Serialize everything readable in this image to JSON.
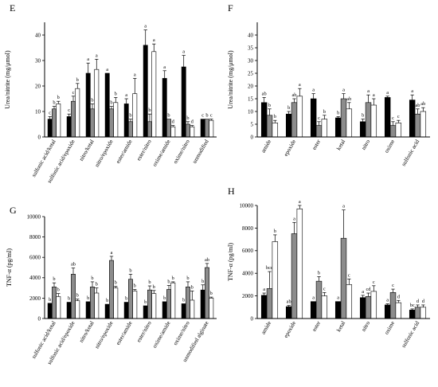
{
  "colors": {
    "series1": "#000000",
    "series2": "#8c8c8c",
    "series3": "#ffffff"
  },
  "chart_data": [
    {
      "panel": "E",
      "type": "bar",
      "ylabel": "Urea/nitrite (mg/μmol)",
      "ylim": [
        0,
        45
      ],
      "yticks": [
        0,
        10,
        20,
        30,
        40
      ],
      "categories": [
        "sulfonic acid/ketal",
        "sulfonic acid/epoxide",
        "nitro/ketal",
        "nitro/epoxide",
        "ester/amide",
        "ester/nitro",
        "oxime/amide",
        "oxime/nitro",
        "unmodified"
      ],
      "series": [
        {
          "values": [
            7,
            8,
            25,
            25,
            13,
            36,
            23,
            27.5,
            7
          ],
          "errors": [
            1,
            1,
            4,
            0,
            2,
            6,
            3,
            4.5,
            0
          ],
          "labels": [
            "c",
            "c",
            "a",
            "a",
            "a",
            "a",
            "a",
            "a",
            "c"
          ]
        },
        {
          "values": [
            11,
            14,
            11,
            11,
            6,
            6,
            7,
            5,
            7
          ],
          "errors": [
            1,
            2,
            2,
            1,
            1,
            3,
            0,
            1,
            0
          ],
          "labels": [
            "b",
            "c",
            "b",
            "b",
            "b",
            "b",
            "b",
            "b",
            "b"
          ]
        },
        {
          "values": [
            13,
            19,
            26.5,
            13.5,
            17,
            33.5,
            4,
            4,
            6.5
          ],
          "errors": [
            1,
            2,
            4,
            2,
            6,
            3,
            0.5,
            0.5,
            0.5
          ],
          "labels": [
            "b",
            "b",
            "a",
            "b",
            "a",
            "a",
            "d",
            "d",
            "c"
          ]
        }
      ]
    },
    {
      "panel": "F",
      "type": "bar",
      "ylabel": "Urea/nitrite (mg/μmol)",
      "ylim": [
        0,
        45
      ],
      "yticks": [
        0,
        5,
        10,
        15,
        20,
        25,
        30,
        35,
        40
      ],
      "categories": [
        "amide",
        "epoxide",
        "ester",
        "ketal",
        "nitro",
        "oxime",
        "sulfonic acid"
      ],
      "series": [
        {
          "values": [
            13.5,
            9,
            15,
            7.5,
            6,
            15.5,
            14.5
          ],
          "errors": [
            2,
            1,
            2,
            0.5,
            1,
            0.5,
            2
          ],
          "labels": [
            "ab",
            "b",
            "a",
            "b",
            "b",
            "a",
            "a"
          ]
        },
        {
          "values": [
            8.5,
            13.5,
            4.5,
            15,
            13.5,
            4.5,
            9
          ],
          "errors": [
            2.5,
            1.5,
            1.5,
            2,
            3,
            1.5,
            2
          ],
          "labels": [
            "b",
            "ab",
            "c",
            "a",
            "a",
            "c",
            "ab"
          ]
        },
        {
          "values": [
            5.5,
            16,
            7,
            11,
            12.5,
            5.5,
            10
          ],
          "errors": [
            1,
            3,
            1.5,
            2.5,
            2.5,
            1,
            1.5
          ],
          "labels": [
            "b",
            "a",
            "b",
            "ab",
            "a",
            "c",
            "ab"
          ]
        }
      ]
    },
    {
      "panel": "G",
      "type": "bar",
      "ylabel": "TNF-α (pg/ml)",
      "ylim": [
        0,
        10000
      ],
      "yticks": [
        0,
        2000,
        4000,
        6000,
        8000,
        10000
      ],
      "categories": [
        "sulfonic acid/ketal",
        "sulfonic acid/epoxide",
        "nitro/ketal",
        "nitro/epoxide",
        "ester/amide",
        "ester/nitro",
        "oxime/amide",
        "oxime/nitro",
        "unmodified alginate"
      ],
      "series": [
        {
          "values": [
            1500,
            1600,
            1650,
            1400,
            1600,
            1250,
            1650,
            1450,
            2800
          ],
          "errors": [
            0,
            0,
            0,
            0,
            0,
            0,
            0,
            0,
            500
          ],
          "labels": [
            "b",
            "b",
            "b",
            "b",
            "b",
            "b",
            "b",
            "b",
            "b"
          ]
        },
        {
          "values": [
            3100,
            4350,
            3100,
            5700,
            3850,
            2800,
            2850,
            3100,
            5000
          ],
          "errors": [
            400,
            600,
            500,
            400,
            500,
            400,
            400,
            500,
            400
          ],
          "labels": [
            "b",
            "ab",
            "b",
            "a",
            "b",
            "b",
            "b",
            "b",
            "ab"
          ]
        },
        {
          "values": [
            2150,
            1750,
            2500,
            3000,
            2700,
            2450,
            3500,
            1800,
            2000
          ],
          "errors": [
            300,
            150,
            500,
            150,
            150,
            300,
            100,
            900,
            100
          ],
          "labels": [
            "b",
            "b",
            "b",
            "b",
            "b",
            "b",
            "b",
            "b",
            "b"
          ]
        }
      ]
    },
    {
      "panel": "H",
      "type": "bar",
      "ylabel": "TNF-α (pg/ml)",
      "ylim": [
        0,
        10000
      ],
      "yticks": [
        0,
        2000,
        4000,
        6000,
        8000,
        10000
      ],
      "categories": [
        "amide",
        "epoxide",
        "ester",
        "ketal",
        "nitro",
        "oxime",
        "sulfonic acid"
      ],
      "series": [
        {
          "values": [
            2050,
            1050,
            1500,
            1500,
            1850,
            1200,
            750
          ],
          "errors": [
            200,
            100,
            0,
            0,
            200,
            100,
            100
          ],
          "labels": [
            "a",
            "ab",
            "a",
            "a",
            "a",
            "a",
            "bc"
          ]
        },
        {
          "values": [
            2650,
            7500,
            3300,
            7100,
            1950,
            2300,
            1000
          ],
          "errors": [
            1500,
            1000,
            400,
            2500,
            300,
            300,
            200
          ],
          "labels": [
            "bcd",
            "a",
            "b",
            "a",
            "cd",
            "c",
            "d"
          ]
        },
        {
          "values": [
            6800,
            9700,
            2000,
            3000,
            2400,
            1400,
            1000
          ],
          "errors": [
            600,
            300,
            300,
            500,
            500,
            200,
            200
          ],
          "labels": [
            "b",
            "a",
            "c",
            "c",
            "c",
            "d",
            "d"
          ]
        }
      ]
    }
  ]
}
